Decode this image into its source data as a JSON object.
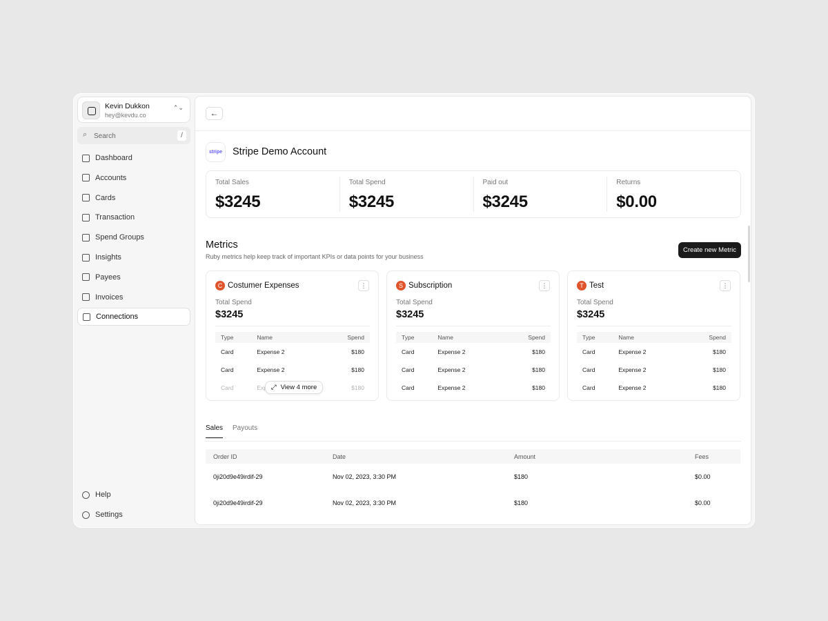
{
  "user": {
    "name": "Kevin Dukkon",
    "email": "hey@kevdu.co"
  },
  "search": {
    "placeholder": "Search",
    "shortcut": "/"
  },
  "nav": [
    "Dashboard",
    "Accounts",
    "Cards",
    "Transaction",
    "Spend Groups",
    "Insights",
    "Payees",
    "Invoices",
    "Connections"
  ],
  "footer_nav": [
    "Help",
    "Settings"
  ],
  "account": {
    "logo": "stripe",
    "name": "Stripe Demo Account"
  },
  "stats": [
    {
      "label": "Total Sales",
      "value": "$3245"
    },
    {
      "label": "Total Spend",
      "value": "$3245"
    },
    {
      "label": "Paid out",
      "value": "$3245"
    },
    {
      "label": "Returns",
      "value": "$0.00"
    }
  ],
  "metrics": {
    "title": "Metrics",
    "description": "Ruby metrics help keep track of important KPIs or data points for your business",
    "button": "Create new Metric",
    "cards": [
      {
        "initial": "C",
        "name": "Costumer Expenses",
        "stat_label": "Total Spend",
        "stat_value": "$3245",
        "columns": [
          "Type",
          "Name",
          "Spend"
        ],
        "rows": [
          [
            "Card",
            "Expense 2",
            "$180"
          ],
          [
            "Card",
            "Expense 2",
            "$180"
          ],
          [
            "Card",
            "Expense 2",
            "$180"
          ]
        ],
        "more": "View 4 more"
      },
      {
        "initial": "S",
        "name": "Subscription",
        "stat_label": "Total Spend",
        "stat_value": "$3245",
        "columns": [
          "Type",
          "Name",
          "Spend"
        ],
        "rows": [
          [
            "Card",
            "Expense 2",
            "$180"
          ],
          [
            "Card",
            "Expense 2",
            "$180"
          ],
          [
            "Card",
            "Expense 2",
            "$180"
          ]
        ]
      },
      {
        "initial": "T",
        "name": "Test",
        "stat_label": "Total Spend",
        "stat_value": "$3245",
        "columns": [
          "Type",
          "Name",
          "Spend"
        ],
        "rows": [
          [
            "Card",
            "Expense 2",
            "$180"
          ],
          [
            "Card",
            "Expense 2",
            "$180"
          ],
          [
            "Card",
            "Expense 2",
            "$180"
          ]
        ]
      }
    ]
  },
  "tabs": [
    "Sales",
    "Payouts"
  ],
  "table": {
    "columns": [
      "Order ID",
      "Date",
      "Amount",
      "Fees"
    ],
    "rows": [
      [
        "0ji20d9e49irdif-29",
        "Nov 02, 2023, 3:30 PM",
        "$180",
        "$0.00"
      ],
      [
        "0ji20d9e49irdif-29",
        "Nov 02, 2023, 3:30 PM",
        "$180",
        "$0.00"
      ]
    ]
  }
}
